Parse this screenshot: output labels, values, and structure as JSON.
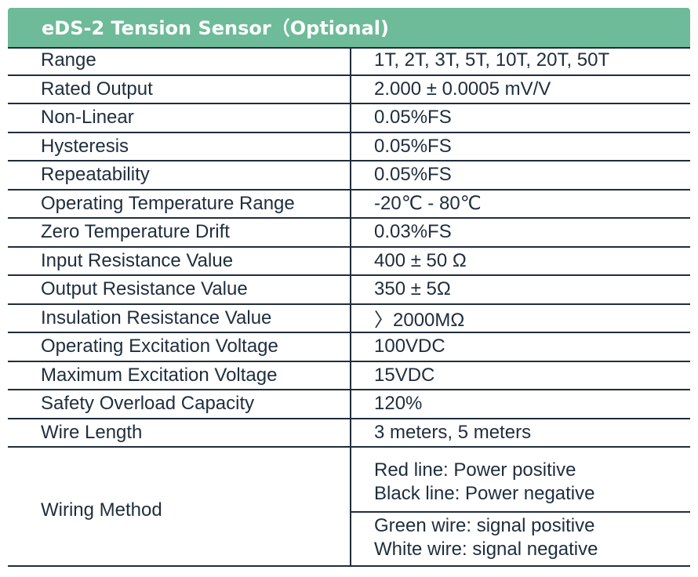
{
  "header": {
    "title": "eDS-2 Tension Sensor（Optional)"
  },
  "rows": [
    {
      "key": "Range",
      "value": "1T, 2T, 3T, 5T, 10T, 20T, 50T"
    },
    {
      "key": "Rated Output",
      "value": "2.000 ± 0.0005 mV/V"
    },
    {
      "key": "Non-Linear",
      "value": "0.05%FS"
    },
    {
      "key": "Hysteresis",
      "value": "0.05%FS"
    },
    {
      "key": "Repeatability",
      "value": "0.05%FS"
    },
    {
      "key": "Operating Temperature Range",
      "value": "-20℃ -  80℃"
    },
    {
      "key": "Zero Temperature Drift",
      "value": "0.03%FS"
    },
    {
      "key": "Input Resistance Value",
      "value": "400 ± 50 Ω"
    },
    {
      "key": "Output Resistance Value",
      "value": "350 ± 5Ω"
    },
    {
      "key": "Insulation Resistance Value",
      "value": "〉2000MΩ"
    },
    {
      "key": "Operating Excitation Voltage",
      "value": "100VDC"
    },
    {
      "key": "Maximum Excitation Voltage",
      "value": "15VDC"
    },
    {
      "key": "Safety Overload Capacity",
      "value": "120%"
    },
    {
      "key": "Wire Length",
      "value": "3 meters, 5 meters"
    }
  ],
  "wiring": {
    "key": "Wiring Method",
    "group1": [
      "Red line: Power positive",
      "Black line: Power negative"
    ],
    "group2": [
      "Green wire: signal positive",
      "White wire: signal negative"
    ]
  }
}
